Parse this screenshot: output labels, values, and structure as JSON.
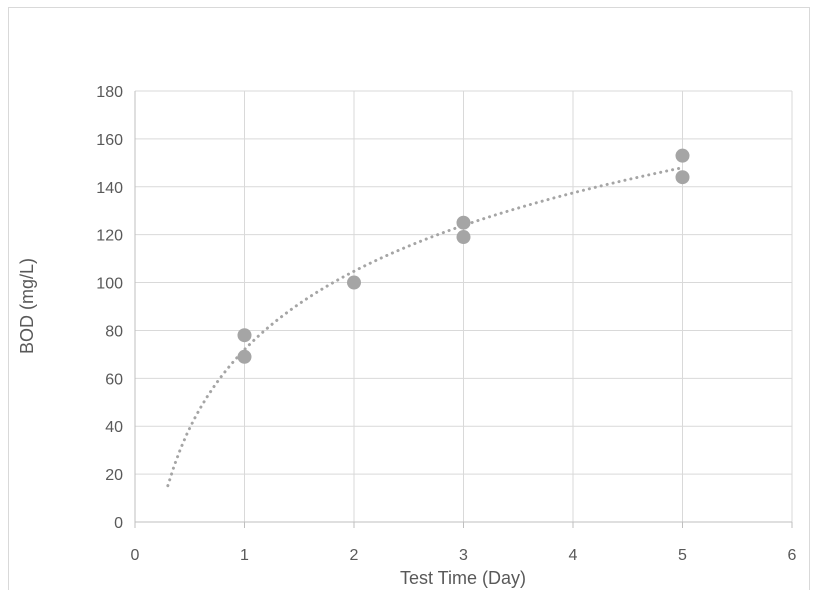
{
  "chart_data": {
    "type": "scatter",
    "title": "",
    "xlabel": "Test Time (Day)",
    "ylabel": "BOD (mg/L)",
    "xlim": [
      0,
      6
    ],
    "ylim": [
      0,
      180
    ],
    "x_ticks": [
      0,
      1,
      2,
      3,
      4,
      5,
      6
    ],
    "y_ticks": [
      0,
      20,
      40,
      60,
      80,
      100,
      120,
      140,
      160,
      180
    ],
    "grid": true,
    "legend": "none",
    "series": [
      {
        "points": [
          {
            "x": 1,
            "y": 78
          },
          {
            "x": 1,
            "y": 69
          },
          {
            "x": 2,
            "y": 100
          },
          {
            "x": 3,
            "y": 125
          },
          {
            "x": 3,
            "y": 119
          },
          {
            "x": 5,
            "y": 153
          },
          {
            "x": 5,
            "y": 144
          }
        ],
        "color": "#a5a5a5"
      }
    ],
    "trendline": {
      "type": "logarithmic",
      "style": "dotted",
      "color": "#a5a5a5",
      "x_range": [
        0.3,
        5
      ],
      "a": 47.2,
      "b": 72.0
    }
  }
}
